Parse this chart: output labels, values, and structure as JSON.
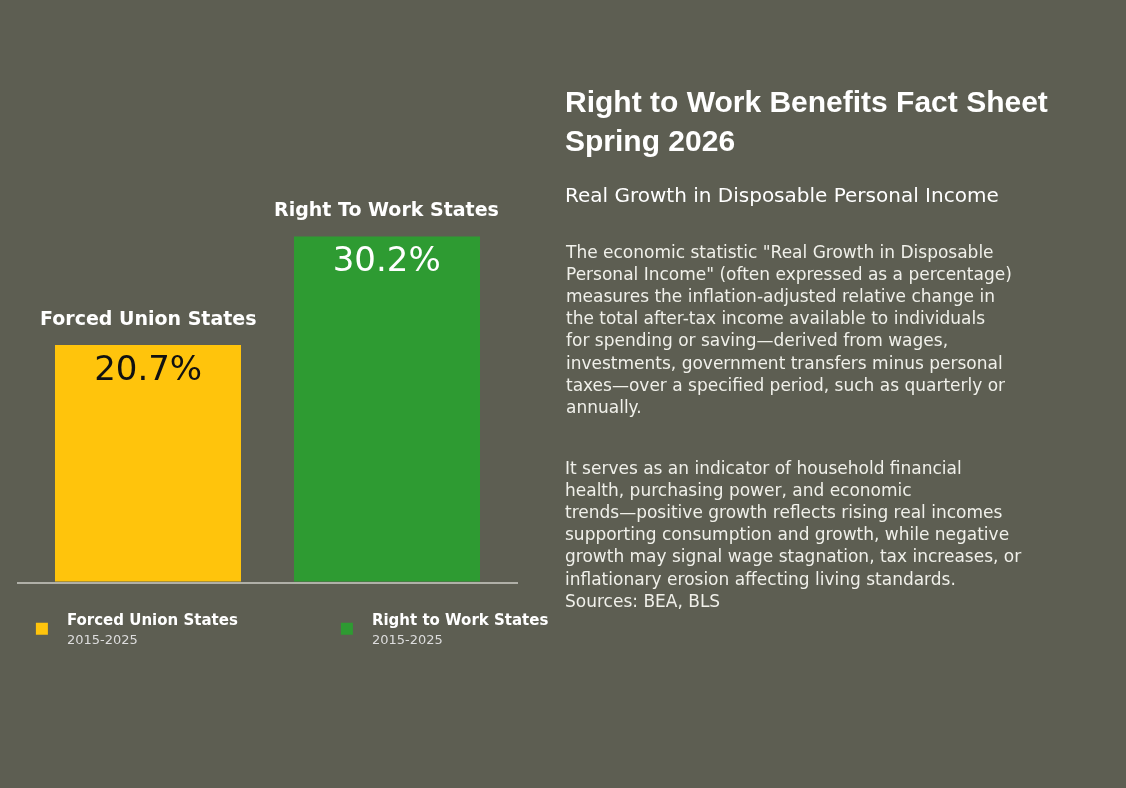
{
  "chart_data": {
    "type": "bar",
    "title": "Right to Work Benefits Fact Sheet\nSpring 2026",
    "subtitle": "Real Growth in Disposable Personal Income",
    "categories": [
      "Forced Union States",
      "Right To Work States"
    ],
    "series": [
      {
        "name": "Forced Union States\n2015-2025",
        "color": "#ffc40c",
        "values": [
          20.7,
          null
        ],
        "value_labels": [
          "20.7%",
          null
        ]
      },
      {
        "name": "Right to Work States\n2015-2025",
        "color": "#2e9b32",
        "values": [
          null,
          30.2
        ],
        "value_labels": [
          null,
          "30.2%"
        ]
      }
    ],
    "stacked": true,
    "legend": "bottom",
    "annotations": [
      "The economic statistic \"Real Growth in Disposable Personal Income\" (often expressed as a percentage) measures the inflation-adjusted relative change in the total after-tax income available to individuals for spending or saving—derived from wages, investments, government transfers minus personal taxes—over a specified period, such as quarterly or annually.",
      "It serves as an indicator of household financial health, purchasing power, and economic trends—positive growth reflects rising real incomes supporting consumption and growth, while negative growth may signal wage stagnation, tax increases, or inflationary erosion affecting living standards. Sources: BEA, BLS"
    ]
  }
}
